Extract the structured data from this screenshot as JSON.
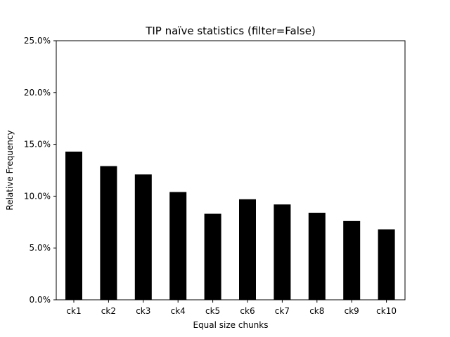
{
  "chart_data": {
    "type": "bar",
    "title": "TIP naïve statistics (filter=False)",
    "xlabel": "Equal size chunks",
    "ylabel": "Relative Frequency",
    "categories": [
      "ck1",
      "ck2",
      "ck3",
      "ck4",
      "ck5",
      "ck6",
      "ck7",
      "ck8",
      "ck9",
      "ck10"
    ],
    "values": [
      14.3,
      12.9,
      12.1,
      10.4,
      8.3,
      9.7,
      9.2,
      8.4,
      7.6,
      6.8
    ],
    "ylim": [
      0,
      25
    ],
    "yticks": [
      0,
      5,
      10,
      15,
      20,
      25
    ],
    "ytick_labels": [
      "0.0%",
      "5.0%",
      "10.0%",
      "15.0%",
      "20.0%",
      "25.0%"
    ],
    "bar_color": "#000000",
    "grid": false
  }
}
